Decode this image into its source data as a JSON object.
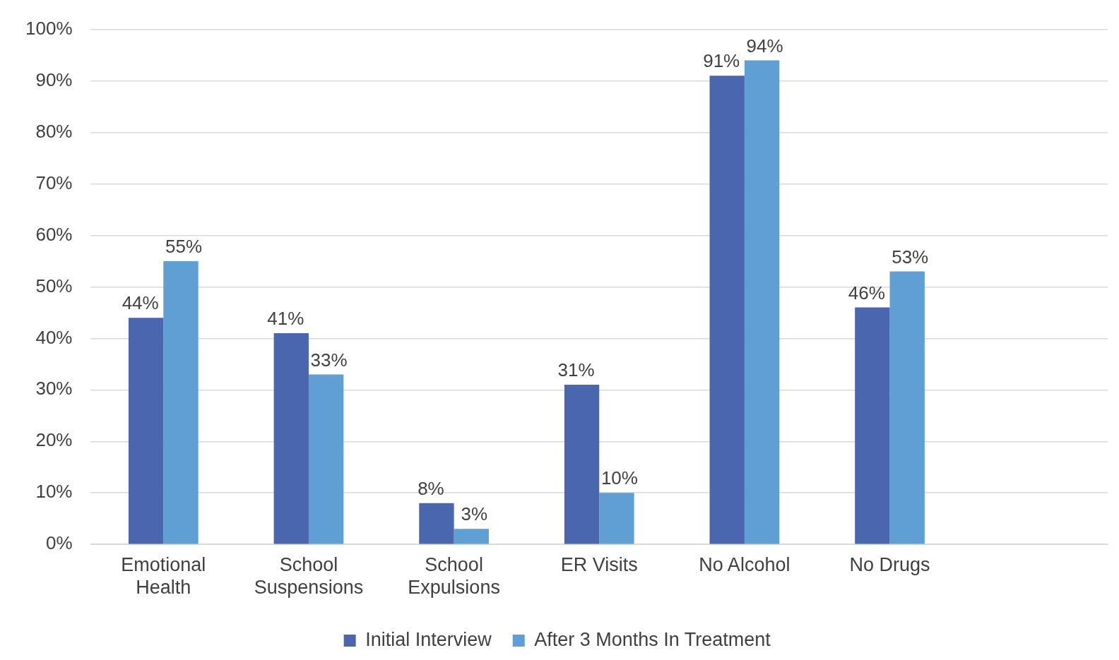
{
  "chart_data": {
    "type": "bar",
    "categories": [
      "Emotional Health",
      "School Suspensions",
      "School Expulsions",
      "ER Visits",
      "No Alcohol",
      "No Drugs",
      null
    ],
    "series": [
      {
        "name": "Initial Interview",
        "color": "#4a66ae",
        "values": [
          44,
          41,
          8,
          31,
          91,
          46,
          null
        ],
        "value_labels": [
          "44%",
          "41%",
          "8%",
          "31%",
          "91%",
          "46%",
          null
        ]
      },
      {
        "name": "After 3 Months In Treatment",
        "color": "#5f9fd3",
        "values": [
          55,
          33,
          3,
          10,
          94,
          53,
          null
        ],
        "value_labels": [
          "55%",
          "33%",
          "3%",
          "10%",
          "94%",
          "53%",
          null
        ]
      }
    ],
    "ylim": [
      0,
      100
    ],
    "yticks": [
      {
        "value": 0,
        "label": "0%"
      },
      {
        "value": 10,
        "label": "10%"
      },
      {
        "value": 20,
        "label": "20%"
      },
      {
        "value": 30,
        "label": "30%"
      },
      {
        "value": 40,
        "label": "40%"
      },
      {
        "value": 50,
        "label": "50%"
      },
      {
        "value": 60,
        "label": "60%"
      },
      {
        "value": 70,
        "label": "70%"
      },
      {
        "value": 80,
        "label": "80%"
      },
      {
        "value": 90,
        "label": "90%"
      },
      {
        "value": 100,
        "label": "100%"
      }
    ],
    "grid": "y",
    "legend": "bottom"
  }
}
